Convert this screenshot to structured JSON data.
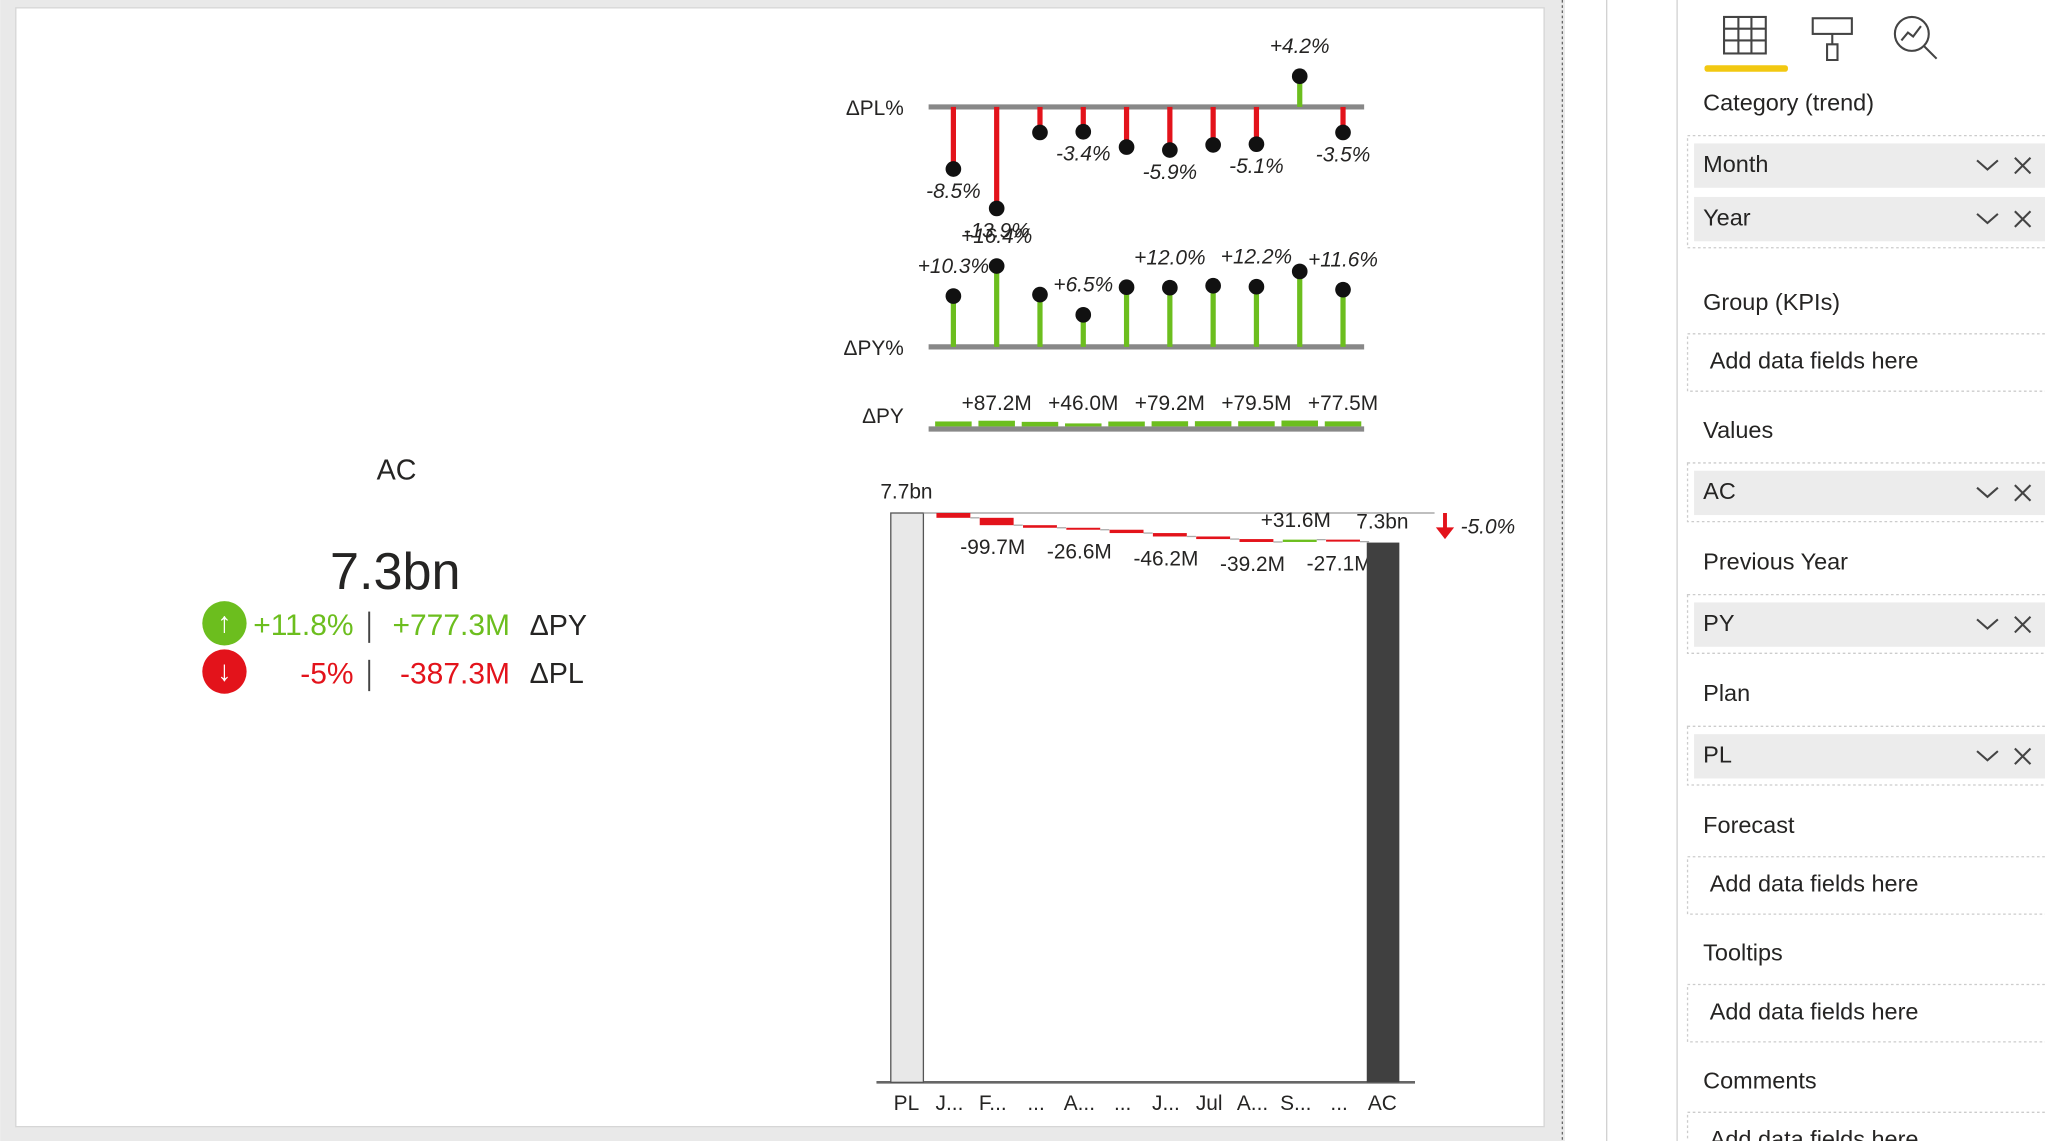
{
  "kpi": {
    "title": "AC",
    "value": "7.3bn",
    "rows": [
      {
        "pct": "+11.8%",
        "abs": "+777.3M",
        "label": "ΔPY",
        "color": "#6cbe1e",
        "arrow": "↑"
      },
      {
        "pct": "-5%",
        "abs": "-387.3M",
        "label": "ΔPL",
        "color": "#e3131b",
        "arrow": "↓"
      }
    ]
  },
  "chart_data": {
    "type": "variance",
    "categories": [
      "J...",
      "F...",
      "...",
      "A...",
      "...",
      "J...",
      "Jul",
      "A...",
      "S...",
      "..."
    ],
    "pl_pct": {
      "label": "ΔPL%",
      "values": [
        -8.5,
        -13.9,
        -3.5,
        -3.4,
        -5.5,
        -5.9,
        -5.2,
        -5.1,
        4.2,
        -3.5
      ],
      "value_labels": [
        "-8.5%",
        "-13.9%",
        null,
        "-3.4%",
        null,
        "-5.9%",
        null,
        "-5.1%",
        "+4.2%",
        "-3.5%"
      ]
    },
    "py_pct": {
      "label": "ΔPY%",
      "values": [
        10.3,
        16.4,
        10.6,
        6.5,
        12.1,
        12.0,
        12.4,
        12.2,
        15.3,
        11.6
      ],
      "value_labels": [
        "+10.3%",
        "+16.4%",
        null,
        "+6.5%",
        null,
        "+12.0%",
        null,
        "+12.2%",
        null,
        "+11.6%"
      ]
    },
    "py_abs": {
      "label": "ΔPY",
      "values": [
        76,
        87.2,
        70,
        46.0,
        75,
        79.2,
        80,
        79.5,
        90,
        77.5
      ],
      "value_labels": [
        null,
        "+87.2M",
        null,
        "+46.0M",
        null,
        "+79.2M",
        null,
        "+79.5M",
        null,
        "+77.5M"
      ]
    },
    "waterfall": {
      "start_label": "PL",
      "start_value": 7700,
      "start_value_label": "7.7bn",
      "end_label": "AC",
      "end_value": 7300,
      "end_value_label": "7.3bn",
      "deltas": [
        -65,
        -99.7,
        -35,
        -26.6,
        -45,
        -46.2,
        -35.1,
        -39.2,
        31.6,
        -27.1
      ],
      "delta_labels": [
        null,
        "-99.7M",
        null,
        "-26.6M",
        null,
        "-46.2M",
        null,
        "-39.2M",
        "+31.6M",
        "-27.1M"
      ],
      "variance": -5.0,
      "variance_label": "-5.0%"
    },
    "positive_color": "#6cbe1e",
    "negative_color": "#e3131b"
  },
  "pane": {
    "sections": [
      {
        "title": "Category (trend)",
        "fields": [
          "Month",
          "Year"
        ]
      },
      {
        "title": "Group (KPIs)",
        "placeholder": "Add data fields here"
      },
      {
        "title": "Values",
        "fields": [
          "AC"
        ]
      },
      {
        "title": "Previous Year",
        "fields": [
          "PY"
        ]
      },
      {
        "title": "Plan",
        "fields": [
          "PL"
        ]
      },
      {
        "title": "Forecast",
        "placeholder": "Add data fields here"
      },
      {
        "title": "Tooltips",
        "placeholder": "Add data fields here"
      },
      {
        "title": "Comments",
        "placeholder": "Add data fields here"
      }
    ]
  }
}
